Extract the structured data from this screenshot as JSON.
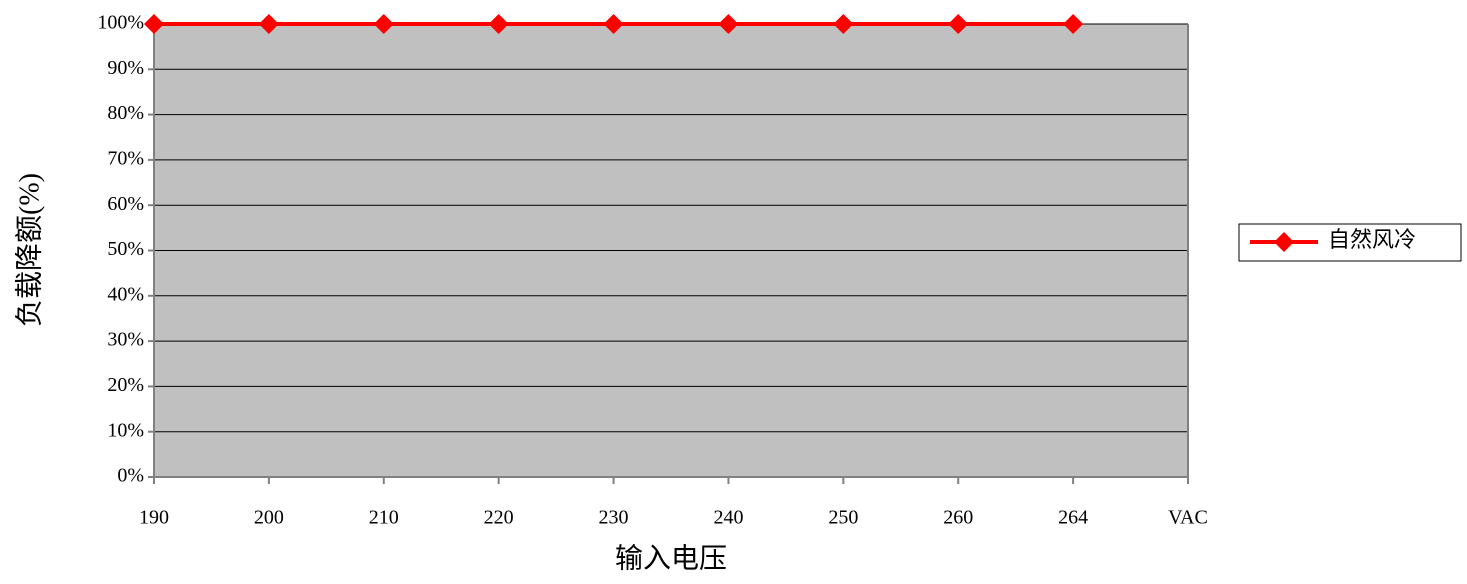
{
  "chart_data": {
    "type": "line",
    "y_label": "负载降额(%)",
    "x_label": "输入电压",
    "categories": [
      "190",
      "200",
      "210",
      "220",
      "230",
      "240",
      "250",
      "260",
      "264",
      "VAC"
    ],
    "series": [
      {
        "name": "自然风冷",
        "color": "#ff0000",
        "values": [
          100,
          100,
          100,
          100,
          100,
          100,
          100,
          100,
          100,
          null
        ]
      }
    ],
    "ylim": [
      0,
      100
    ],
    "yticks": [
      {
        "value": 0,
        "label": "0%"
      },
      {
        "value": 10,
        "label": "10%"
      },
      {
        "value": 20,
        "label": "20%"
      },
      {
        "value": 30,
        "label": "30%"
      },
      {
        "value": 40,
        "label": "40%"
      },
      {
        "value": 50,
        "label": "50%"
      },
      {
        "value": 60,
        "label": "60%"
      },
      {
        "value": 70,
        "label": "70%"
      },
      {
        "value": 80,
        "label": "80%"
      },
      {
        "value": 90,
        "label": "90%"
      },
      {
        "value": 100,
        "label": "100%"
      }
    ],
    "grid": true,
    "plot_background": "#c0c0c0",
    "legend": "right"
  }
}
